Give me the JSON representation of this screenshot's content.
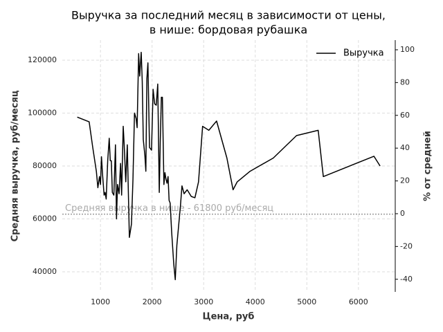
{
  "chart_data": {
    "type": "line",
    "title": "Выручка за последний месяц в зависимости от цены,",
    "subtitle": "в нише: бордовая рубашка",
    "x_label": "Цена, руб",
    "y_label": "Средняя выручка, руб/месяц",
    "y2_label": "% от средней",
    "annotation": "Средняя выручка в нише - 61800 руб/месяц",
    "mean_line": 61800,
    "legend": "upper right",
    "grid": true,
    "xlim": [
      260,
      6700
    ],
    "ylim": [
      32400,
      127600
    ],
    "y2lim": [
      -47.7,
      105.9
    ],
    "xticks": [
      1000,
      2000,
      3000,
      4000,
      5000,
      6000
    ],
    "yticks": [
      40000,
      60000,
      80000,
      100000,
      120000
    ],
    "y2ticks": [
      -40,
      -20,
      0,
      20,
      40,
      60,
      80,
      100
    ],
    "series": [
      {
        "name": "Выручка",
        "color": "#000000",
        "x": [
          550,
          780,
          850,
          920,
          950,
          980,
          1000,
          1020,
          1040,
          1070,
          1090,
          1110,
          1140,
          1170,
          1190,
          1210,
          1230,
          1260,
          1290,
          1310,
          1330,
          1360,
          1390,
          1410,
          1440,
          1460,
          1490,
          1520,
          1560,
          1600,
          1630,
          1660,
          1690,
          1710,
          1740,
          1760,
          1790,
          1810,
          1830,
          1860,
          1880,
          1900,
          1920,
          1950,
          1990,
          2020,
          2050,
          2080,
          2110,
          2140,
          2160,
          2180,
          2200,
          2230,
          2250,
          2270,
          2290,
          2310,
          2330,
          2350,
          2380,
          2420,
          2450,
          2480,
          2550,
          2580,
          2620,
          2680,
          2760,
          2830,
          2900,
          2980,
          3100,
          3250,
          3450,
          3570,
          3650,
          3900,
          4350,
          4800,
          5220,
          5320,
          6300,
          6420
        ],
        "values": [
          98500,
          96700,
          87000,
          78000,
          71800,
          76000,
          73000,
          83500,
          77000,
          69000,
          70000,
          67500,
          82000,
          90500,
          82000,
          82000,
          70000,
          69000,
          88000,
          60000,
          73000,
          69500,
          81000,
          69000,
          95000,
          88000,
          74000,
          88000,
          53000,
          58000,
          75000,
          100000,
          98000,
          94500,
          122500,
          114000,
          123000,
          112000,
          90000,
          84000,
          78000,
          113000,
          119000,
          87000,
          86000,
          109000,
          103500,
          103000,
          111000,
          70000,
          90000,
          106000,
          106000,
          73000,
          77500,
          75000,
          73500,
          76000,
          67000,
          66000,
          55000,
          43000,
          37000,
          50000,
          65000,
          72500,
          69500,
          71000,
          68500,
          68000,
          74000,
          95000,
          93500,
          97000,
          83000,
          71000,
          74000,
          78000,
          83000,
          91500,
          93500,
          76000,
          83700,
          80000
        ]
      }
    ]
  }
}
